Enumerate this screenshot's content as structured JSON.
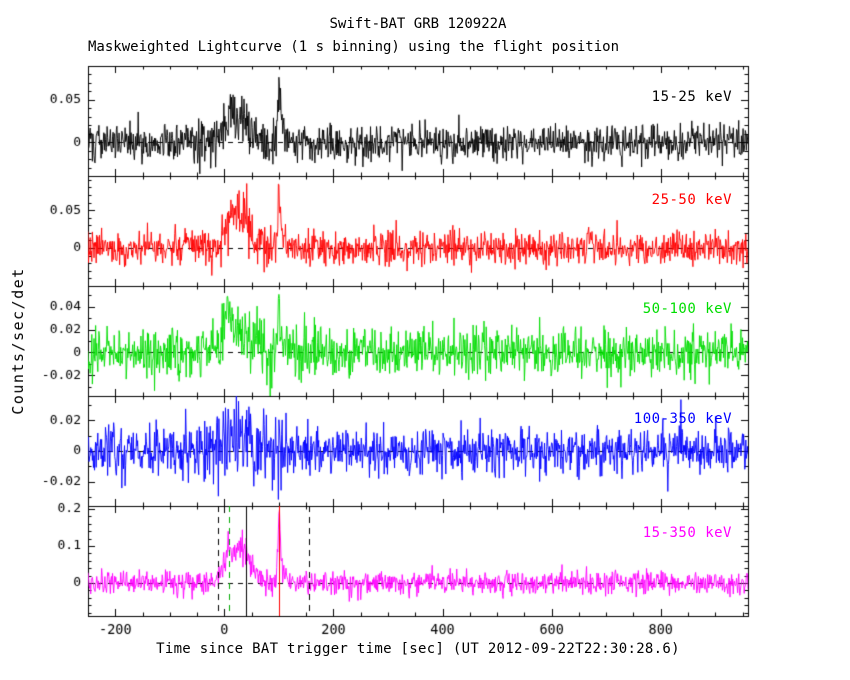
{
  "title": "Swift-BAT GRB 120922A",
  "subtitle": "Maskweighted Lightcurve (1 s binning) using the flight position",
  "xlabel": "Time since BAT trigger time [sec] (UT 2012-09-22T22:30:28.6)",
  "ylabel": "Counts/sec/det",
  "chart_data": {
    "type": "line",
    "x_range": [
      -250,
      960
    ],
    "x_ticks": [
      -200,
      0,
      200,
      400,
      600,
      800
    ],
    "x_tick_labels": [
      "-200",
      "0",
      "200",
      "400",
      "600",
      "800"
    ],
    "x_minor_step": 50,
    "bin_seconds": 1,
    "zero_line": {
      "style": "dashed",
      "color": "#000000"
    },
    "panels": [
      {
        "label": "15-25 keV",
        "color": "#000000",
        "seed": 101,
        "ylim": [
          -0.04,
          0.09
        ],
        "yticks": [
          0,
          0.05
        ],
        "ytick_labels": [
          "0",
          "0.05"
        ],
        "y_minor_step": 0.01,
        "noise_sigma": 0.011,
        "noise_boost": {
          "t": 30,
          "sigma": 60,
          "amp": 0.004
        },
        "components": [
          {
            "type": "gauss",
            "t": 5,
            "sigma": 10,
            "amp": 0.018
          },
          {
            "type": "gauss",
            "t": 32,
            "sigma": 18,
            "amp": 0.03
          },
          {
            "type": "fred",
            "t": 100,
            "rise": 2,
            "decay": 5,
            "amp": 0.07
          }
        ]
      },
      {
        "label": "25-50 keV",
        "color": "#ff0000",
        "seed": 202,
        "ylim": [
          -0.05,
          0.095
        ],
        "yticks": [
          0,
          0.05
        ],
        "ytick_labels": [
          "0",
          "0.05"
        ],
        "y_minor_step": 0.01,
        "noise_sigma": 0.011,
        "noise_boost": {
          "t": 30,
          "sigma": 60,
          "amp": 0.005
        },
        "components": [
          {
            "type": "gauss",
            "t": 5,
            "sigma": 10,
            "amp": 0.025
          },
          {
            "type": "gauss",
            "t": 32,
            "sigma": 16,
            "amp": 0.042
          },
          {
            "type": "fred",
            "t": 100,
            "rise": 2,
            "decay": 5,
            "amp": 0.075
          }
        ]
      },
      {
        "label": "50-100 keV",
        "color": "#00dd00",
        "seed": 303,
        "ylim": [
          -0.038,
          0.058
        ],
        "yticks": [
          -0.02,
          0,
          0.02,
          0.04
        ],
        "ytick_labels": [
          "-0.02",
          "0",
          "0.02",
          "0.04"
        ],
        "y_minor_step": 0.01,
        "noise_sigma": 0.01,
        "noise_boost": {
          "t": 25,
          "sigma": 55,
          "amp": 0.004
        },
        "components": [
          {
            "type": "gauss",
            "t": 8,
            "sigma": 7,
            "amp": 0.038
          },
          {
            "type": "gauss",
            "t": 35,
            "sigma": 18,
            "amp": 0.02
          },
          {
            "type": "fred",
            "t": 100,
            "rise": 2,
            "decay": 5,
            "amp": 0.045
          }
        ]
      },
      {
        "label": "100-350 keV",
        "color": "#0000ff",
        "seed": 404,
        "ylim": [
          -0.036,
          0.036
        ],
        "yticks": [
          -0.02,
          0,
          0.02
        ],
        "ytick_labels": [
          "-0.02",
          "0",
          "0.02"
        ],
        "y_minor_step": 0.01,
        "noise_sigma": 0.008,
        "noise_boost": {
          "t": 30,
          "sigma": 55,
          "amp": 0.007
        },
        "components": [
          {
            "type": "gauss",
            "t": 8,
            "sigma": 8,
            "amp": 0.006
          },
          {
            "type": "gauss",
            "t": 32,
            "sigma": 15,
            "amp": 0.01
          },
          {
            "type": "fred",
            "t": 100,
            "rise": 2,
            "decay": 5,
            "amp": 0.012
          }
        ]
      },
      {
        "label": "15-350 keV",
        "color": "#ff00ff",
        "seed": 505,
        "ylim": [
          -0.089,
          0.208
        ],
        "yticks": [
          0,
          0.1,
          0.2
        ],
        "ytick_labels": [
          "0",
          "0.1",
          "0.2"
        ],
        "y_minor_step": 0.02,
        "noise_sigma": 0.016,
        "noise_boost": {
          "t": 30,
          "sigma": 60,
          "amp": 0.006
        },
        "components": [
          {
            "type": "gauss",
            "t": 5,
            "sigma": 10,
            "amp": 0.055
          },
          {
            "type": "gauss",
            "t": 32,
            "sigma": 17,
            "amp": 0.09
          },
          {
            "type": "fred",
            "t": 100,
            "rise": 2,
            "decay": 5,
            "amp": 0.185
          }
        ]
      }
    ],
    "event_lines": [
      {
        "x": -12,
        "color": "#000000",
        "style": "dashed"
      },
      {
        "x": 8,
        "color": "#00aa00",
        "style": "dashed"
      },
      {
        "x": 40,
        "color": "#000000",
        "style": "solid"
      },
      {
        "x": 100,
        "color": "#ff0000",
        "style": "solid"
      },
      {
        "x": 156,
        "color": "#000000",
        "style": "dashed"
      }
    ]
  }
}
